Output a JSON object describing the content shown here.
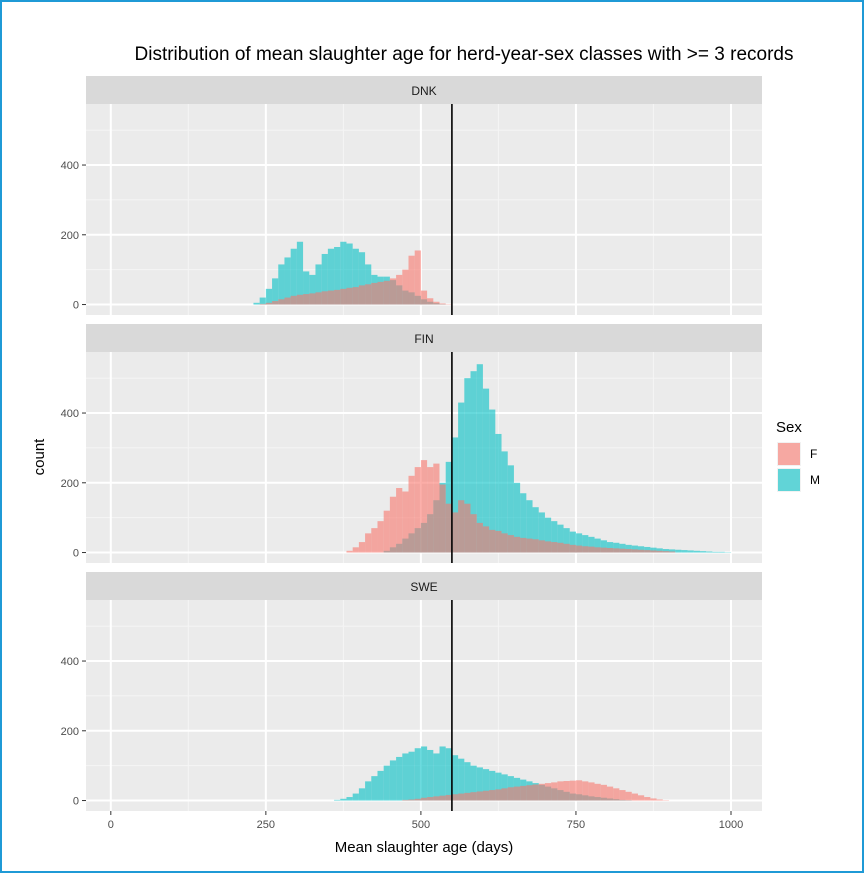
{
  "chart_data": {
    "type": "histogram",
    "title": "Distribution of mean slaughter age for herd-year-sex classes with >= 3 records",
    "xlabel": "Mean slaughter age (days)",
    "ylabel": "count",
    "xlim": [
      -40,
      1050
    ],
    "ylim": [
      -30,
      575
    ],
    "x_ticks": [
      0,
      250,
      500,
      750,
      1000
    ],
    "y_ticks": [
      0,
      200,
      400
    ],
    "reference_line_x": 550,
    "bin_width": 10,
    "legend": {
      "title": "Sex",
      "placement": "right",
      "entries": [
        {
          "label": "F",
          "color": "#F8766D"
        },
        {
          "label": "M",
          "color": "#00BFC4"
        }
      ]
    },
    "facets": [
      {
        "label": "DNK",
        "series": [
          {
            "name": "F",
            "color": "#F8766D",
            "x": [
              240,
              250,
              260,
              270,
              280,
              290,
              300,
              310,
              320,
              330,
              340,
              350,
              360,
              370,
              380,
              390,
              400,
              410,
              420,
              430,
              440,
              450,
              460,
              470,
              480,
              490,
              500,
              510,
              520,
              530,
              540
            ],
            "values": [
              2,
              5,
              10,
              15,
              20,
              25,
              28,
              30,
              32,
              35,
              38,
              40,
              42,
              45,
              48,
              50,
              55,
              58,
              62,
              65,
              68,
              75,
              85,
              100,
              140,
              155,
              40,
              18,
              8,
              3,
              1
            ]
          },
          {
            "name": "M",
            "color": "#00BFC4",
            "x": [
              230,
              240,
              250,
              260,
              270,
              280,
              290,
              300,
              310,
              320,
              330,
              340,
              350,
              360,
              370,
              380,
              390,
              400,
              410,
              420,
              430,
              440,
              450,
              460,
              470,
              480,
              490,
              500,
              510,
              520,
              530
            ],
            "values": [
              5,
              20,
              45,
              75,
              115,
              135,
              160,
              180,
              95,
              85,
              115,
              145,
              160,
              165,
              180,
              175,
              160,
              150,
              115,
              85,
              80,
              80,
              70,
              55,
              40,
              35,
              25,
              15,
              8,
              4,
              1
            ]
          }
        ]
      },
      {
        "label": "FIN",
        "series": [
          {
            "name": "F",
            "color": "#F8766D",
            "x": [
              380,
              390,
              400,
              410,
              420,
              430,
              440,
              450,
              460,
              470,
              480,
              490,
              500,
              510,
              520,
              530,
              540,
              550,
              560,
              570,
              580,
              590,
              600,
              610,
              620,
              630,
              640,
              650,
              660,
              670,
              680,
              690,
              700,
              710,
              720,
              730,
              740,
              750,
              760,
              770,
              780,
              790,
              800,
              810,
              820,
              830,
              840,
              850,
              860,
              870,
              880,
              890,
              900
            ],
            "values": [
              5,
              15,
              30,
              55,
              70,
              90,
              120,
              160,
              185,
              175,
              220,
              245,
              265,
              245,
              255,
              195,
              140,
              115,
              150,
              140,
              110,
              85,
              75,
              65,
              62,
              55,
              50,
              45,
              42,
              40,
              38,
              35,
              32,
              30,
              28,
              25,
              22,
              20,
              18,
              17,
              15,
              14,
              13,
              12,
              11,
              10,
              9,
              8,
              7,
              6,
              5,
              4,
              3
            ]
          },
          {
            "name": "M",
            "color": "#00BFC4",
            "x": [
              440,
              450,
              460,
              470,
              480,
              490,
              500,
              510,
              520,
              530,
              540,
              550,
              560,
              570,
              580,
              590,
              600,
              610,
              620,
              630,
              640,
              650,
              660,
              670,
              680,
              690,
              700,
              710,
              720,
              730,
              740,
              750,
              760,
              770,
              780,
              790,
              800,
              810,
              820,
              830,
              840,
              850,
              860,
              870,
              880,
              890,
              900,
              910,
              920,
              930,
              940,
              950,
              960,
              970,
              980,
              990
            ],
            "values": [
              5,
              15,
              25,
              40,
              55,
              70,
              85,
              110,
              150,
              200,
              260,
              330,
              430,
              500,
              520,
              540,
              470,
              410,
              340,
              290,
              250,
              200,
              170,
              150,
              130,
              115,
              100,
              90,
              80,
              70,
              60,
              55,
              50,
              45,
              40,
              35,
              30,
              28,
              25,
              22,
              20,
              18,
              16,
              14,
              12,
              10,
              9,
              8,
              7,
              6,
              5,
              4,
              3,
              2,
              2,
              1
            ]
          }
        ]
      },
      {
        "label": "SWE",
        "series": [
          {
            "name": "F",
            "color": "#F8766D",
            "x": [
              470,
              480,
              490,
              500,
              510,
              520,
              530,
              540,
              550,
              560,
              570,
              580,
              590,
              600,
              610,
              620,
              630,
              640,
              650,
              660,
              670,
              680,
              690,
              700,
              710,
              720,
              730,
              740,
              750,
              760,
              770,
              780,
              790,
              800,
              810,
              820,
              830,
              840,
              850,
              860,
              870,
              880,
              890
            ],
            "values": [
              2,
              3,
              5,
              8,
              10,
              12,
              14,
              16,
              18,
              20,
              22,
              24,
              26,
              28,
              30,
              32,
              35,
              38,
              40,
              42,
              44,
              46,
              48,
              50,
              52,
              55,
              56,
              57,
              58,
              55,
              52,
              48,
              45,
              40,
              35,
              30,
              25,
              20,
              15,
              10,
              6,
              3,
              1
            ]
          },
          {
            "name": "M",
            "color": "#00BFC4",
            "x": [
              360,
              370,
              380,
              390,
              400,
              410,
              420,
              430,
              440,
              450,
              460,
              470,
              480,
              490,
              500,
              510,
              520,
              530,
              540,
              550,
              560,
              570,
              580,
              590,
              600,
              610,
              620,
              630,
              640,
              650,
              660,
              670,
              680,
              690,
              700,
              710,
              720,
              730,
              740,
              750,
              760,
              770,
              780,
              790,
              800,
              810,
              820,
              830
            ],
            "values": [
              2,
              5,
              10,
              20,
              35,
              55,
              70,
              85,
              100,
              115,
              125,
              135,
              140,
              150,
              155,
              145,
              135,
              155,
              150,
              130,
              120,
              110,
              100,
              95,
              90,
              85,
              80,
              75,
              70,
              65,
              60,
              55,
              50,
              45,
              40,
              35,
              30,
              25,
              20,
              18,
              15,
              12,
              10,
              8,
              6,
              4,
              2,
              1
            ]
          }
        ]
      }
    ]
  }
}
